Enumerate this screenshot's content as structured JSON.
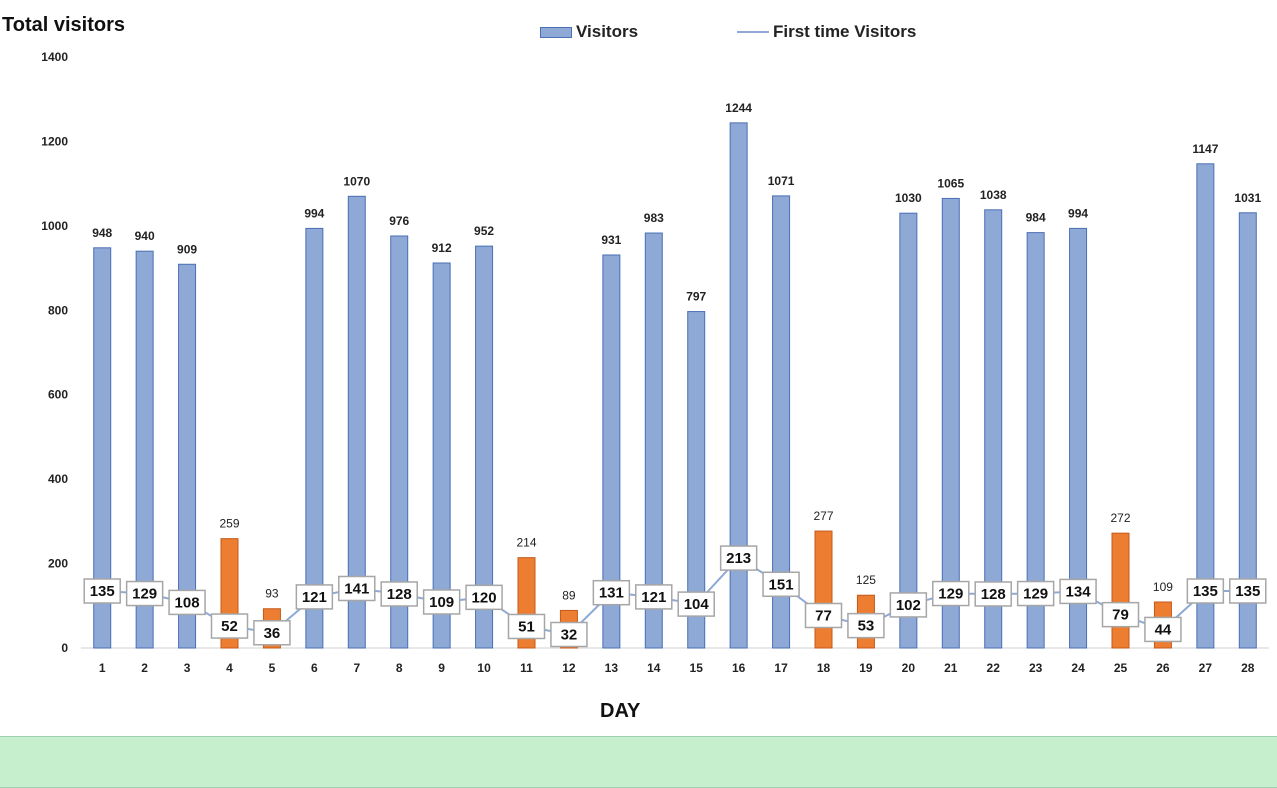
{
  "chart_data": {
    "type": "bar",
    "title": "Total visitors",
    "xlabel": "DAY",
    "ylabel": "",
    "ylim": [
      0,
      1400
    ],
    "yticks": [
      0,
      200,
      400,
      600,
      800,
      1000,
      1200,
      1400
    ],
    "grid": false,
    "legend_position": "top",
    "categories": [
      "1",
      "2",
      "3",
      "4",
      "5",
      "6",
      "7",
      "8",
      "9",
      "10",
      "11",
      "12",
      "13",
      "14",
      "15",
      "16",
      "17",
      "18",
      "19",
      "20",
      "21",
      "22",
      "23",
      "24",
      "25",
      "26",
      "27",
      "28"
    ],
    "series": [
      {
        "name": "Visitors",
        "type": "bar",
        "color": "#8FA9D6",
        "highlight_color": "#ED7D31",
        "highlight_indices": [
          3,
          4,
          10,
          11,
          17,
          18,
          24,
          25
        ],
        "values": [
          948,
          940,
          909,
          259,
          93,
          994,
          1070,
          976,
          912,
          952,
          214,
          89,
          931,
          983,
          797,
          1244,
          1071,
          277,
          125,
          1030,
          1065,
          1038,
          984,
          994,
          272,
          109,
          1147,
          1031
        ]
      },
      {
        "name": "First time Visitors",
        "type": "line",
        "color": "#8FA9D6",
        "values": [
          135,
          129,
          108,
          52,
          36,
          121,
          141,
          128,
          109,
          120,
          51,
          32,
          131,
          121,
          104,
          213,
          151,
          77,
          53,
          102,
          129,
          128,
          129,
          134,
          79,
          44,
          135,
          135
        ]
      }
    ]
  }
}
